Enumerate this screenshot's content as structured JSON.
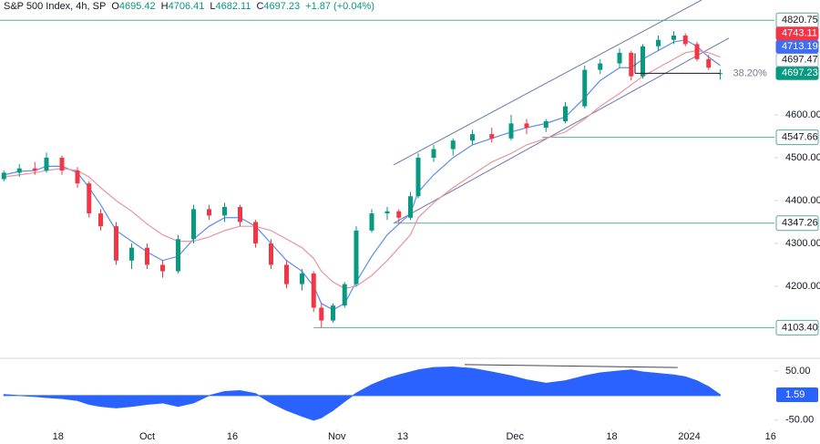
{
  "chart_data": {
    "type": "candlestick",
    "title": "S&P 500 Index, 4h, SP",
    "ohlc": [
      {
        "label": "O",
        "value": 4695.42
      },
      {
        "label": "H",
        "value": 4706.41
      },
      {
        "label": "L",
        "value": 4682.11
      },
      {
        "label": "C",
        "value": 4697.23
      }
    ],
    "change": "+1.87 (+0.04%)",
    "xlim": [
      0,
      100
    ],
    "xticks": [
      {
        "value": 7.5,
        "label": "18"
      },
      {
        "value": 19,
        "label": "Oct"
      },
      {
        "value": 30,
        "label": "16"
      },
      {
        "value": 43.5,
        "label": "Nov"
      },
      {
        "value": 52,
        "label": "13"
      },
      {
        "value": 66.5,
        "label": "Dec"
      },
      {
        "value": 79,
        "label": "18"
      },
      {
        "value": 89,
        "label": "2024"
      },
      {
        "value": 99.5,
        "label": "16"
      }
    ],
    "ylim": [
      4034,
      4868
    ],
    "yticks": [
      {
        "value": 4600,
        "label": "4600.00"
      },
      {
        "value": 4500,
        "label": "4500.00"
      },
      {
        "value": 4400,
        "label": "4400.00"
      },
      {
        "value": 4300,
        "label": "4300.00"
      },
      {
        "value": 4200,
        "label": "4200.00"
      }
    ],
    "colors": {
      "up": "#089981",
      "down": "#f23645"
    },
    "x": [
      0.5,
      2.5,
      4.5,
      6,
      8,
      10,
      11.5,
      13,
      15,
      17,
      19,
      21,
      23,
      25,
      27,
      29,
      31,
      33,
      35,
      37,
      39,
      40.5,
      41.5,
      43,
      44.5,
      46,
      48,
      50,
      51.5,
      53,
      54,
      56,
      58.5,
      61,
      63.5,
      66,
      68,
      70.5,
      73,
      75.5,
      77.5,
      80,
      81.5,
      83,
      85,
      87,
      88.5,
      90,
      91.5,
      93
    ],
    "open": [
      4450,
      4465,
      4475,
      4470,
      4500,
      4470,
      4440,
      4370,
      4340,
      4260,
      4290,
      4250,
      4235,
      4310,
      4380,
      4365,
      4385,
      4350,
      4300,
      4250,
      4205,
      4230,
      4150,
      4120,
      4155,
      4205,
      4330,
      4370,
      4375,
      4360,
      4410,
      4500,
      4520,
      4540,
      4555,
      4545,
      4580,
      4570,
      4585,
      4620,
      4705,
      4720,
      4745,
      4690,
      4760,
      4775,
      4785,
      4765,
      4730,
      4695.42
    ],
    "high": [
      4470,
      4485,
      4490,
      4512,
      4505,
      4478,
      4445,
      4380,
      4350,
      4300,
      4300,
      4260,
      4320,
      4390,
      4390,
      4395,
      4390,
      4355,
      4310,
      4260,
      4240,
      4235,
      4160,
      4160,
      4210,
      4340,
      4380,
      4385,
      4380,
      4420,
      4510,
      4530,
      4545,
      4565,
      4570,
      4600,
      4590,
      4590,
      4630,
      4715,
      4730,
      4755,
      4750,
      4765,
      4785,
      4795,
      4790,
      4770,
      4740,
      4706.41
    ],
    "low": [
      4445,
      4455,
      4460,
      4465,
      4460,
      4430,
      4360,
      4330,
      4250,
      4240,
      4240,
      4220,
      4230,
      4300,
      4355,
      4350,
      4340,
      4290,
      4240,
      4195,
      4190,
      4140,
      4103.4,
      4115,
      4150,
      4200,
      4325,
      4355,
      4347.26,
      4355,
      4405,
      4490,
      4505,
      4530,
      4535,
      4540,
      4555,
      4560,
      4580,
      4615,
      4695,
      4710,
      4680,
      4685,
      4750,
      4765,
      4760,
      4725,
      4705,
      4682.11
    ],
    "close": [
      4465,
      4475,
      4470,
      4500,
      4470,
      4440,
      4370,
      4340,
      4260,
      4290,
      4250,
      4235,
      4310,
      4380,
      4365,
      4385,
      4350,
      4300,
      4250,
      4205,
      4230,
      4150,
      4120,
      4155,
      4205,
      4330,
      4370,
      4375,
      4360,
      4410,
      4500,
      4520,
      4540,
      4555,
      4545,
      4580,
      4570,
      4585,
      4620,
      4705,
      4720,
      4745,
      4690,
      4760,
      4775,
      4785,
      4765,
      4730,
      4710,
      4697.23
    ],
    "lines": [
      {
        "color": "#5b8def",
        "values": [
          4460,
          4468,
          4470,
          4480,
          4480,
          4465,
          4430,
          4390,
          4330,
          4305,
          4280,
          4260,
          4270,
          4310,
          4340,
          4360,
          4360,
          4340,
          4300,
          4260,
          4235,
          4200,
          4160,
          4145,
          4160,
          4210,
          4270,
          4320,
          4345,
          4370,
          4420,
          4460,
          4500,
          4530,
          4545,
          4560,
          4570,
          4580,
          4595,
          4640,
          4680,
          4710,
          4710,
          4730,
          4750,
          4770,
          4775,
          4760,
          4735,
          4715
        ]
      },
      {
        "color": "#e8959d",
        "values": [
          4455,
          4460,
          4465,
          4470,
          4475,
          4470,
          4455,
          4430,
          4400,
          4375,
          4345,
          4320,
          4305,
          4305,
          4315,
          4330,
          4340,
          4340,
          4330,
          4310,
          4290,
          4265,
          4235,
          4210,
          4195,
          4200,
          4225,
          4260,
          4290,
          4320,
          4360,
          4395,
          4430,
          4460,
          4490,
          4510,
          4530,
          4545,
          4560,
          4590,
          4620,
          4650,
          4670,
          4690,
          4710,
          4730,
          4745,
          4750,
          4745,
          4735
        ]
      }
    ],
    "levels": [
      {
        "value": 4820.75,
        "from": 0
      },
      {
        "value": 4547.66,
        "from": 70
      },
      {
        "value": 4347.26,
        "from": 51
      },
      {
        "value": 4103.4,
        "label": "4103.40",
        "from": 40.5
      }
    ],
    "level_color": "#5aa8a4",
    "channel": [
      {
        "x": [
          50.8,
          90.6
        ],
        "y": [
          4483,
          4868
        ]
      },
      {
        "x": [
          50.8,
          94.1
        ],
        "y": [
          4347,
          4779
        ]
      }
    ],
    "channel_color": "#6a78a8",
    "fib": {
      "label": "38.20%",
      "value": 4697,
      "x": [
        82,
        93
      ]
    },
    "price_tags": [
      {
        "value": 4743.11,
        "color": "#f23645"
      },
      {
        "value": 4713.19,
        "color": "#3f6ef0"
      },
      {
        "value": 4697.47,
        "color": "#ffffff"
      },
      {
        "value": 4697.23,
        "color": "#089981"
      }
    ],
    "oscillator": {
      "type": "area",
      "color": "#2962ff",
      "ylim": [
        -67,
        72
      ],
      "yticks": [
        {
          "value": 50,
          "label": "50.00"
        },
        {
          "value": -50,
          "label": "-50.00"
        }
      ],
      "values": [
        2,
        0,
        -2,
        -4,
        -6,
        -10,
        -18,
        -22,
        -25,
        -22,
        -18,
        -15,
        -22,
        -15,
        0,
        8,
        10,
        4,
        -15,
        -30,
        -42,
        -50,
        -45,
        -30,
        -12,
        5,
        22,
        35,
        42,
        48,
        52,
        57,
        58,
        55,
        48,
        40,
        32,
        25,
        30,
        40,
        46,
        50,
        52,
        48,
        45,
        42,
        38,
        30,
        18,
        1.59
      ],
      "divergence": {
        "x": [
          60,
          87.5
        ],
        "y": [
          63,
          57
        ]
      }
    }
  }
}
